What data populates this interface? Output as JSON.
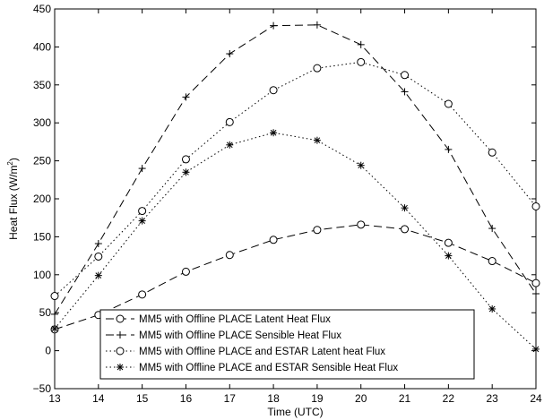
{
  "chart_data": {
    "type": "line",
    "xlabel": "Time (UTC)",
    "ylabel": "Heat Flux (W/m",
    "ylabel_sup": "2",
    "ylabel_suffix": ")",
    "xlim": [
      13,
      24
    ],
    "ylim": [
      -50,
      450
    ],
    "grid": false,
    "legend_position": "bottom-center",
    "x_ticks": [
      "13",
      "14",
      "15",
      "16",
      "17",
      "18",
      "19",
      "20",
      "21",
      "22",
      "23",
      "24"
    ],
    "y_ticks": [
      "450",
      "400",
      "350",
      "300",
      "250",
      "200",
      "150",
      "100",
      "50",
      "0",
      "−50"
    ],
    "x": [
      13,
      14,
      15,
      16,
      17,
      18,
      19,
      20,
      21,
      22,
      23,
      24
    ],
    "series": [
      {
        "name": "MM5 with Offline PLACE Latent Heat Flux",
        "values": [
          28,
          47,
          74,
          104,
          126,
          146,
          159,
          166,
          160,
          142,
          118,
          89
        ],
        "line_style": "dashed",
        "marker": "circle"
      },
      {
        "name": "MM5 with Offline PLACE Sensible Heat Flux",
        "values": [
          48,
          141,
          240,
          334,
          391,
          428,
          429,
          403,
          341,
          265,
          161,
          75
        ],
        "line_style": "dashed",
        "marker": "plus"
      },
      {
        "name": "MM5 with Offline PLACE and ESTAR Latent heat Flux",
        "values": [
          72,
          124,
          184,
          252,
          301,
          343,
          372,
          380,
          363,
          325,
          261,
          190
        ],
        "line_style": "dotted",
        "marker": "circle"
      },
      {
        "name": "MM5 with Offline PLACE and ESTAR Sensible Heat Flux",
        "values": [
          29,
          99,
          171,
          235,
          271,
          287,
          277,
          244,
          188,
          125,
          55,
          2
        ],
        "line_style": "dotted",
        "marker": "asterisk"
      }
    ]
  }
}
